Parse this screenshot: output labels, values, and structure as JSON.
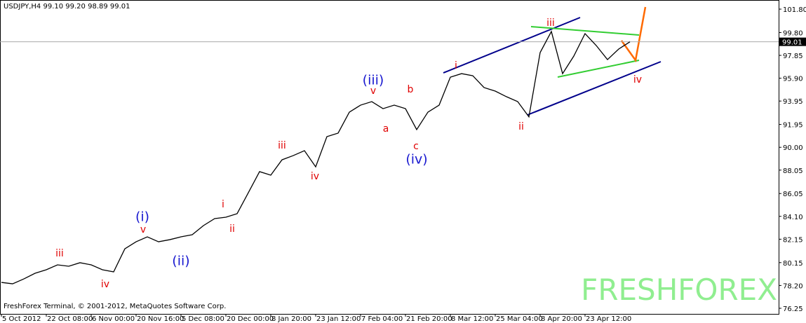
{
  "header": "USDJPY,H4  99.10 99.20 98.89 99.01",
  "footer": "FreshForex Terminal, © 2001-2012, MetaQuotes Software Corp.",
  "watermark": "FRESHFOREX",
  "chart_data": {
    "type": "line",
    "categories": [
      "5 Oct 2012",
      null,
      null,
      null,
      "22 Oct 08:00",
      null,
      null,
      null,
      "6 Nov 00:00",
      null,
      null,
      null,
      "20 Nov 16:00",
      null,
      null,
      null,
      "5 Dec 08:00",
      null,
      null,
      null,
      "20 Dec 00:00",
      null,
      null,
      null,
      "8 Jan 20:00",
      null,
      null,
      null,
      "23 Jan 12:00",
      null,
      null,
      null,
      "7 Feb 04:00",
      null,
      null,
      null,
      "21 Feb 20:00",
      null,
      null,
      null,
      "8 Mar 12:00",
      null,
      null,
      null,
      "25 Mar 04:00",
      null,
      null,
      null,
      "8 Apr 20:00",
      null,
      null,
      null,
      "23 Apr 12:00",
      null,
      null,
      null,
      null
    ],
    "series": [
      {
        "name": "USDJPY",
        "color": "#000000",
        "values": [
          78.46,
          78.34,
          78.76,
          79.24,
          79.54,
          79.96,
          79.84,
          80.14,
          79.96,
          79.54,
          79.36,
          81.33,
          81.93,
          82.35,
          81.93,
          82.11,
          82.35,
          82.53,
          83.31,
          83.91,
          84.03,
          84.33,
          86.12,
          87.92,
          87.62,
          88.93,
          89.29,
          89.71,
          88.33,
          90.91,
          91.21,
          93.0,
          93.6,
          93.9,
          93.3,
          93.6,
          93.3,
          91.51,
          93.0,
          93.6,
          95.99,
          96.29,
          96.11,
          95.1,
          94.8,
          94.32,
          93.9,
          92.6,
          98.09,
          99.89,
          96.29,
          97.79,
          99.71,
          98.69,
          97.49,
          98.39,
          99.01
        ]
      }
    ],
    "last_price": 99.01,
    "ylim": [
      75.77,
      102.4
    ],
    "yticks": [
      {
        "value": 101.8,
        "label": "101.80"
      },
      {
        "value": 99.8,
        "label": "99.80"
      },
      {
        "value": 97.85,
        "label": "97.85"
      },
      {
        "value": 95.9,
        "label": "95.90"
      },
      {
        "value": 93.95,
        "label": "93.95"
      },
      {
        "value": 91.95,
        "label": "91.95"
      },
      {
        "value": 90.0,
        "label": "90.00"
      },
      {
        "value": 88.05,
        "label": "88.05"
      },
      {
        "value": 86.05,
        "label": "86.05"
      },
      {
        "value": 84.1,
        "label": "84.10"
      },
      {
        "value": 82.15,
        "label": "82.15"
      },
      {
        "value": 80.15,
        "label": "80.15"
      },
      {
        "value": 78.2,
        "label": "78.20"
      },
      {
        "value": 76.25,
        "label": "76.25"
      }
    ],
    "annotations": [
      {
        "text": "iii",
        "color": "#e00000"
      },
      {
        "text": "iv",
        "color": "#e00000"
      },
      {
        "text": "(i)",
        "color": "#1a1ad0"
      },
      {
        "text": "v",
        "color": "#e00000"
      },
      {
        "text": "(ii)",
        "color": "#1a1ad0"
      },
      {
        "text": "i",
        "color": "#e00000"
      },
      {
        "text": "ii",
        "color": "#e00000"
      },
      {
        "text": "iii",
        "color": "#e00000"
      },
      {
        "text": "iv",
        "color": "#e00000"
      },
      {
        "text": "(iii)",
        "color": "#1a1ad0"
      },
      {
        "text": "v",
        "color": "#e00000"
      },
      {
        "text": "a",
        "color": "#e00000"
      },
      {
        "text": "b",
        "color": "#e00000"
      },
      {
        "text": "c",
        "color": "#e00000"
      },
      {
        "text": "(iv)",
        "color": "#1a1ad0"
      },
      {
        "text": "i",
        "color": "#e00000"
      },
      {
        "text": "ii",
        "color": "#e00000"
      },
      {
        "text": "iii",
        "color": "#e00000"
      },
      {
        "text": "iv",
        "color": "#e00000"
      }
    ]
  }
}
